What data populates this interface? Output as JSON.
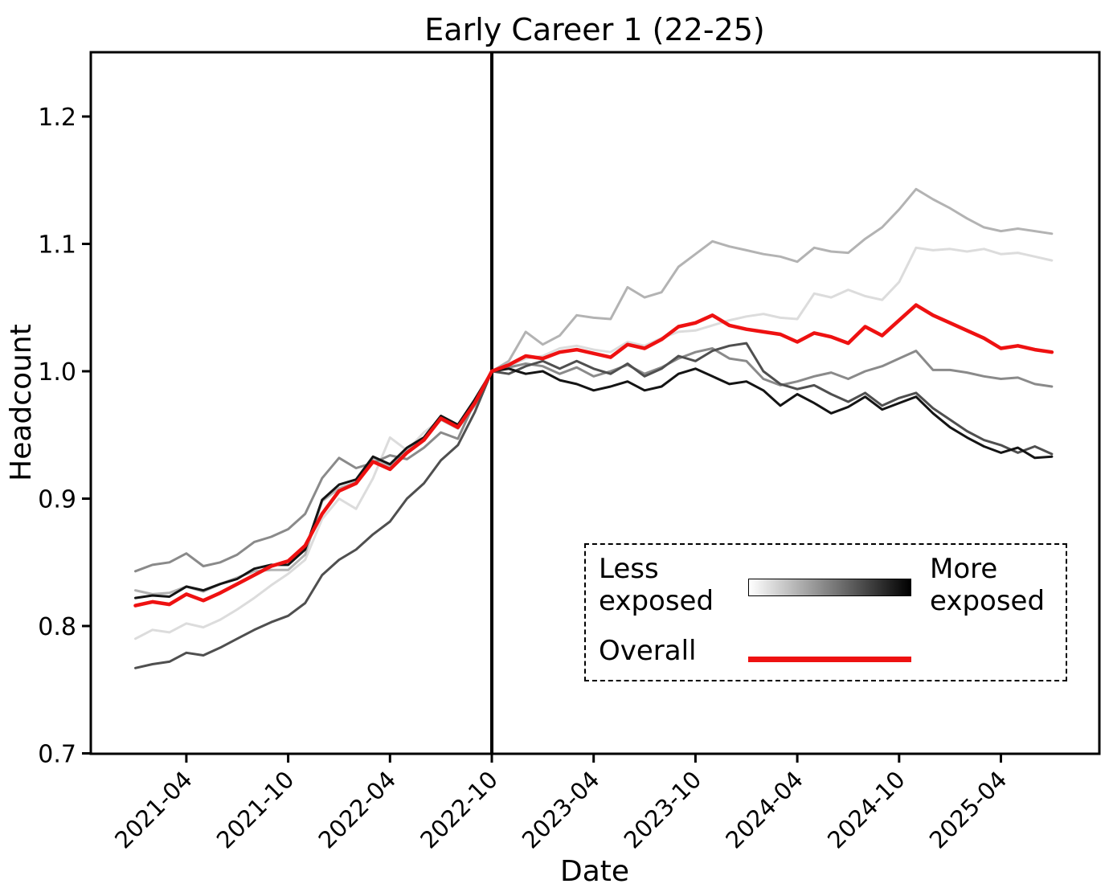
{
  "chart_data": {
    "type": "line",
    "title": "Early Career 1 (22-25)",
    "xlabel": "Date",
    "ylabel": "Headcount",
    "grid": false,
    "ylim": [
      0.7,
      1.251
    ],
    "yticks": [
      0.7,
      0.8,
      0.9,
      1.0,
      1.1,
      1.2
    ],
    "xticks": [
      "2021-04",
      "2021-10",
      "2022-04",
      "2022-10",
      "2023-04",
      "2023-10",
      "2024-04",
      "2024-10",
      "2025-04"
    ],
    "vline_x": "2022-10",
    "normalization_note": "all series equal 1.0 at 2022-10",
    "x_start": "2021-01",
    "x_end": "2025-07",
    "x": [
      "2021-01",
      "2021-02",
      "2021-03",
      "2021-04",
      "2021-05",
      "2021-06",
      "2021-07",
      "2021-08",
      "2021-09",
      "2021-10",
      "2021-11",
      "2021-12",
      "2022-01",
      "2022-02",
      "2022-03",
      "2022-04",
      "2022-05",
      "2022-06",
      "2022-07",
      "2022-08",
      "2022-09",
      "2022-10",
      "2022-11",
      "2022-12",
      "2023-01",
      "2023-02",
      "2023-03",
      "2023-04",
      "2023-05",
      "2023-06",
      "2023-07",
      "2023-08",
      "2023-09",
      "2023-10",
      "2023-11",
      "2023-12",
      "2024-01",
      "2024-02",
      "2024-03",
      "2024-04",
      "2024-05",
      "2024-06",
      "2024-07",
      "2024-08",
      "2024-09",
      "2024-10",
      "2024-11",
      "2024-12",
      "2025-01",
      "2025-02",
      "2025-03",
      "2025-04",
      "2025-05",
      "2025-06",
      "2025-07"
    ],
    "series": [
      {
        "name": "exposure-quintile-1-least-exposed",
        "color": "#dcdcdc",
        "width": 3,
        "values": [
          0.79,
          0.797,
          0.795,
          0.802,
          0.799,
          0.805,
          0.813,
          0.822,
          0.832,
          0.841,
          0.852,
          0.884,
          0.9,
          0.892,
          0.916,
          0.948,
          0.938,
          0.952,
          0.962,
          0.956,
          0.978,
          1.0,
          1.004,
          1.01,
          1.012,
          1.018,
          1.02,
          1.017,
          1.015,
          1.023,
          1.02,
          1.026,
          1.031,
          1.032,
          1.036,
          1.04,
          1.043,
          1.045,
          1.042,
          1.041,
          1.061,
          1.058,
          1.064,
          1.059,
          1.056,
          1.07,
          1.097,
          1.095,
          1.096,
          1.094,
          1.096,
          1.092,
          1.093,
          1.09,
          1.087
        ]
      },
      {
        "name": "exposure-quintile-2",
        "color": "#b3b3b3",
        "width": 3,
        "values": [
          0.828,
          0.825,
          0.826,
          0.831,
          0.827,
          0.833,
          0.838,
          0.843,
          0.844,
          0.844,
          0.856,
          0.898,
          0.908,
          0.913,
          0.932,
          0.925,
          0.938,
          0.947,
          0.962,
          0.955,
          0.973,
          1.0,
          1.008,
          1.031,
          1.021,
          1.028,
          1.044,
          1.042,
          1.041,
          1.066,
          1.058,
          1.062,
          1.082,
          1.092,
          1.102,
          1.098,
          1.095,
          1.092,
          1.09,
          1.086,
          1.097,
          1.094,
          1.093,
          1.104,
          1.113,
          1.127,
          1.143,
          1.135,
          1.128,
          1.12,
          1.113,
          1.11,
          1.112,
          1.11,
          1.108
        ]
      },
      {
        "name": "exposure-quintile-3",
        "color": "#8a8a8a",
        "width": 3,
        "values": [
          0.843,
          0.848,
          0.85,
          0.857,
          0.847,
          0.85,
          0.856,
          0.866,
          0.87,
          0.876,
          0.888,
          0.916,
          0.932,
          0.924,
          0.928,
          0.934,
          0.931,
          0.94,
          0.952,
          0.947,
          0.976,
          1.0,
          1.003,
          1.006,
          1.004,
          0.998,
          1.003,
          0.996,
          1.0,
          1.005,
          0.998,
          1.003,
          1.01,
          1.015,
          1.018,
          1.01,
          1.008,
          0.994,
          0.989,
          0.992,
          0.996,
          0.999,
          0.994,
          1.0,
          1.004,
          1.01,
          1.016,
          1.001,
          1.001,
          0.999,
          0.996,
          0.994,
          0.995,
          0.99,
          0.988
        ]
      },
      {
        "name": "exposure-quintile-4",
        "color": "#4f4f4f",
        "width": 3,
        "values": [
          0.767,
          0.77,
          0.772,
          0.779,
          0.777,
          0.783,
          0.79,
          0.797,
          0.803,
          0.808,
          0.818,
          0.84,
          0.852,
          0.86,
          0.872,
          0.882,
          0.9,
          0.912,
          0.93,
          0.942,
          0.968,
          1.0,
          0.998,
          1.004,
          1.008,
          1.002,
          1.008,
          1.002,
          0.998,
          1.006,
          0.996,
          1.002,
          1.012,
          1.008,
          1.016,
          1.02,
          1.022,
          1.0,
          0.99,
          0.986,
          0.989,
          0.982,
          0.976,
          0.983,
          0.973,
          0.979,
          0.983,
          0.971,
          0.962,
          0.953,
          0.946,
          0.942,
          0.936,
          0.941,
          0.935
        ]
      },
      {
        "name": "exposure-quintile-5-most-exposed",
        "color": "#141414",
        "width": 3,
        "values": [
          0.822,
          0.824,
          0.823,
          0.831,
          0.828,
          0.833,
          0.837,
          0.845,
          0.848,
          0.848,
          0.86,
          0.899,
          0.911,
          0.915,
          0.933,
          0.927,
          0.94,
          0.948,
          0.965,
          0.958,
          0.978,
          1.0,
          1.002,
          0.998,
          1.0,
          0.993,
          0.99,
          0.985,
          0.988,
          0.992,
          0.985,
          0.988,
          0.998,
          1.002,
          0.996,
          0.99,
          0.992,
          0.985,
          0.973,
          0.982,
          0.975,
          0.967,
          0.972,
          0.98,
          0.97,
          0.975,
          0.98,
          0.967,
          0.956,
          0.948,
          0.941,
          0.936,
          0.94,
          0.932,
          0.933
        ]
      },
      {
        "name": "overall",
        "color": "#ee1111",
        "width": 4.5,
        "values": [
          0.816,
          0.819,
          0.817,
          0.825,
          0.82,
          0.826,
          0.833,
          0.84,
          0.847,
          0.851,
          0.863,
          0.888,
          0.906,
          0.912,
          0.929,
          0.923,
          0.936,
          0.946,
          0.963,
          0.956,
          0.975,
          1.0,
          1.005,
          1.012,
          1.01,
          1.015,
          1.017,
          1.014,
          1.011,
          1.021,
          1.018,
          1.025,
          1.035,
          1.038,
          1.044,
          1.036,
          1.033,
          1.031,
          1.029,
          1.023,
          1.03,
          1.027,
          1.022,
          1.035,
          1.028,
          1.04,
          1.052,
          1.044,
          1.038,
          1.032,
          1.026,
          1.018,
          1.02,
          1.017,
          1.015
        ]
      }
    ],
    "legend": {
      "less_label": "Less\nexposed",
      "more_label": "More\nexposed",
      "overall_label": "Overall",
      "gradient": [
        "#ffffff",
        "#000000"
      ],
      "overall_color": "#ee1111",
      "position": "lower right",
      "border": "dashed"
    },
    "colors": {
      "vline": "#000000",
      "axes": "#000000",
      "background": "#ffffff"
    }
  }
}
